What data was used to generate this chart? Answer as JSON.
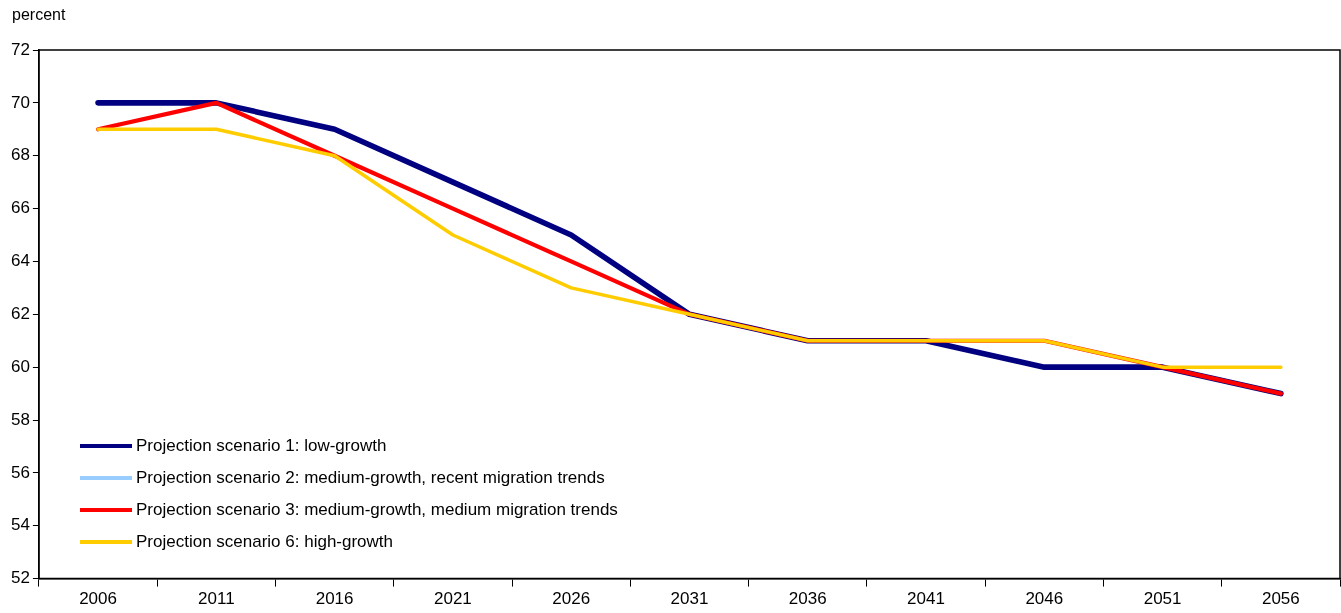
{
  "chart_data": {
    "type": "line",
    "ylabel": "percent",
    "categories": [
      "2006",
      "2011",
      "2016",
      "2021",
      "2026",
      "2031",
      "2036",
      "2041",
      "2046",
      "2051",
      "2056"
    ],
    "series": [
      {
        "name": "Projection scenario 1: low-growth",
        "color": "#000080",
        "values": [
          70,
          70,
          69,
          67,
          65,
          62,
          61,
          61,
          60,
          60,
          59
        ]
      },
      {
        "name": "Projection scenario 2: medium-growth, recent migration trends",
        "color": "#99ccff",
        "values": [
          null,
          null,
          null,
          null,
          null,
          null,
          null,
          null,
          null,
          null,
          null
        ]
      },
      {
        "name": "Projection scenario 3: medium-growth, medium migration trends",
        "color": "#ff0000",
        "values": [
          69,
          70,
          68,
          66,
          64,
          62,
          61,
          61,
          61,
          60,
          59
        ]
      },
      {
        "name": "Projection scenario 6: high-growth",
        "color": "#ffcc00",
        "values": [
          69,
          69,
          68,
          65,
          63,
          62,
          61,
          61,
          61,
          60,
          60
        ]
      }
    ],
    "ylim": [
      52,
      72
    ],
    "yticks": [
      52,
      54,
      56,
      58,
      60,
      62,
      64,
      66,
      68,
      70,
      72
    ],
    "grid": false,
    "legend": "bottom left",
    "marker": "none",
    "line_style": "solid"
  }
}
